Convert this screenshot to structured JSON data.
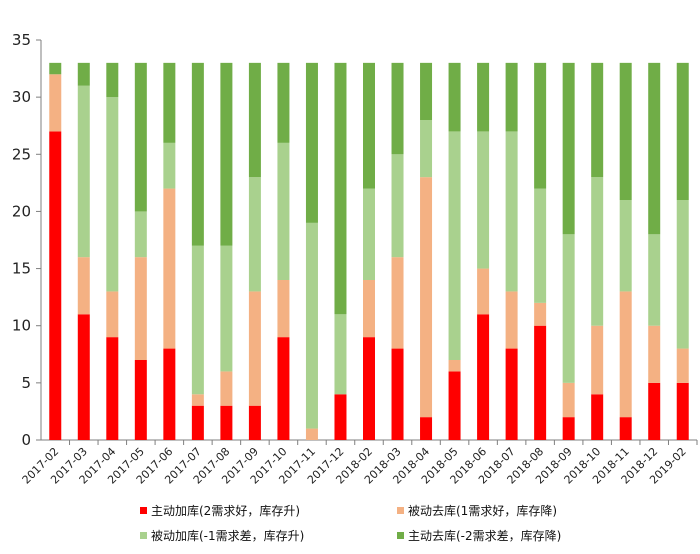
{
  "chart_data": {
    "type": "bar",
    "stacked": true,
    "title": "",
    "xlabel": "",
    "ylabel": "",
    "ylim": [
      0,
      35
    ],
    "yticks": [
      0,
      5,
      10,
      15,
      20,
      25,
      30,
      35
    ],
    "grid": false,
    "legend_position": "bottom",
    "categories": [
      "2017-02",
      "2017-03",
      "2017-04",
      "2017-05",
      "2017-06",
      "2017-07",
      "2017-08",
      "2017-09",
      "2017-10",
      "2017-11",
      "2017-12",
      "2018-02",
      "2018-03",
      "2018-04",
      "2018-05",
      "2018-06",
      "2018-07",
      "2018-08",
      "2018-09",
      "2018-10",
      "2018-11",
      "2018-12",
      "2019-02"
    ],
    "series": [
      {
        "name": "主动加库(2需求好，库存升)",
        "color": "#ff0000",
        "values": [
          27,
          11,
          9,
          7,
          8,
          3,
          3,
          3,
          9,
          0,
          4,
          9,
          8,
          2,
          6,
          11,
          8,
          10,
          2,
          4,
          2,
          5,
          5
        ]
      },
      {
        "name": "被动去库(1需求好，库存降)",
        "color": "#f4b183",
        "values": [
          5,
          5,
          4,
          9,
          14,
          1,
          3,
          10,
          5,
          1,
          0,
          5,
          8,
          21,
          1,
          4,
          5,
          2,
          3,
          6,
          11,
          5,
          3
        ]
      },
      {
        "name": "被动加库(-1需求差，库存升)",
        "color": "#a9d18e",
        "values": [
          0,
          15,
          17,
          4,
          4,
          13,
          11,
          10,
          12,
          18,
          7,
          8,
          9,
          5,
          20,
          12,
          14,
          10,
          13,
          13,
          8,
          8,
          13
        ]
      },
      {
        "name": "主动去库(-2需求差，库存降)",
        "color": "#70ad47",
        "values": [
          1,
          2,
          3,
          13,
          7,
          16,
          16,
          10,
          7,
          14,
          22,
          11,
          8,
          5,
          6,
          6,
          6,
          11,
          15,
          10,
          12,
          15,
          12
        ]
      }
    ]
  }
}
